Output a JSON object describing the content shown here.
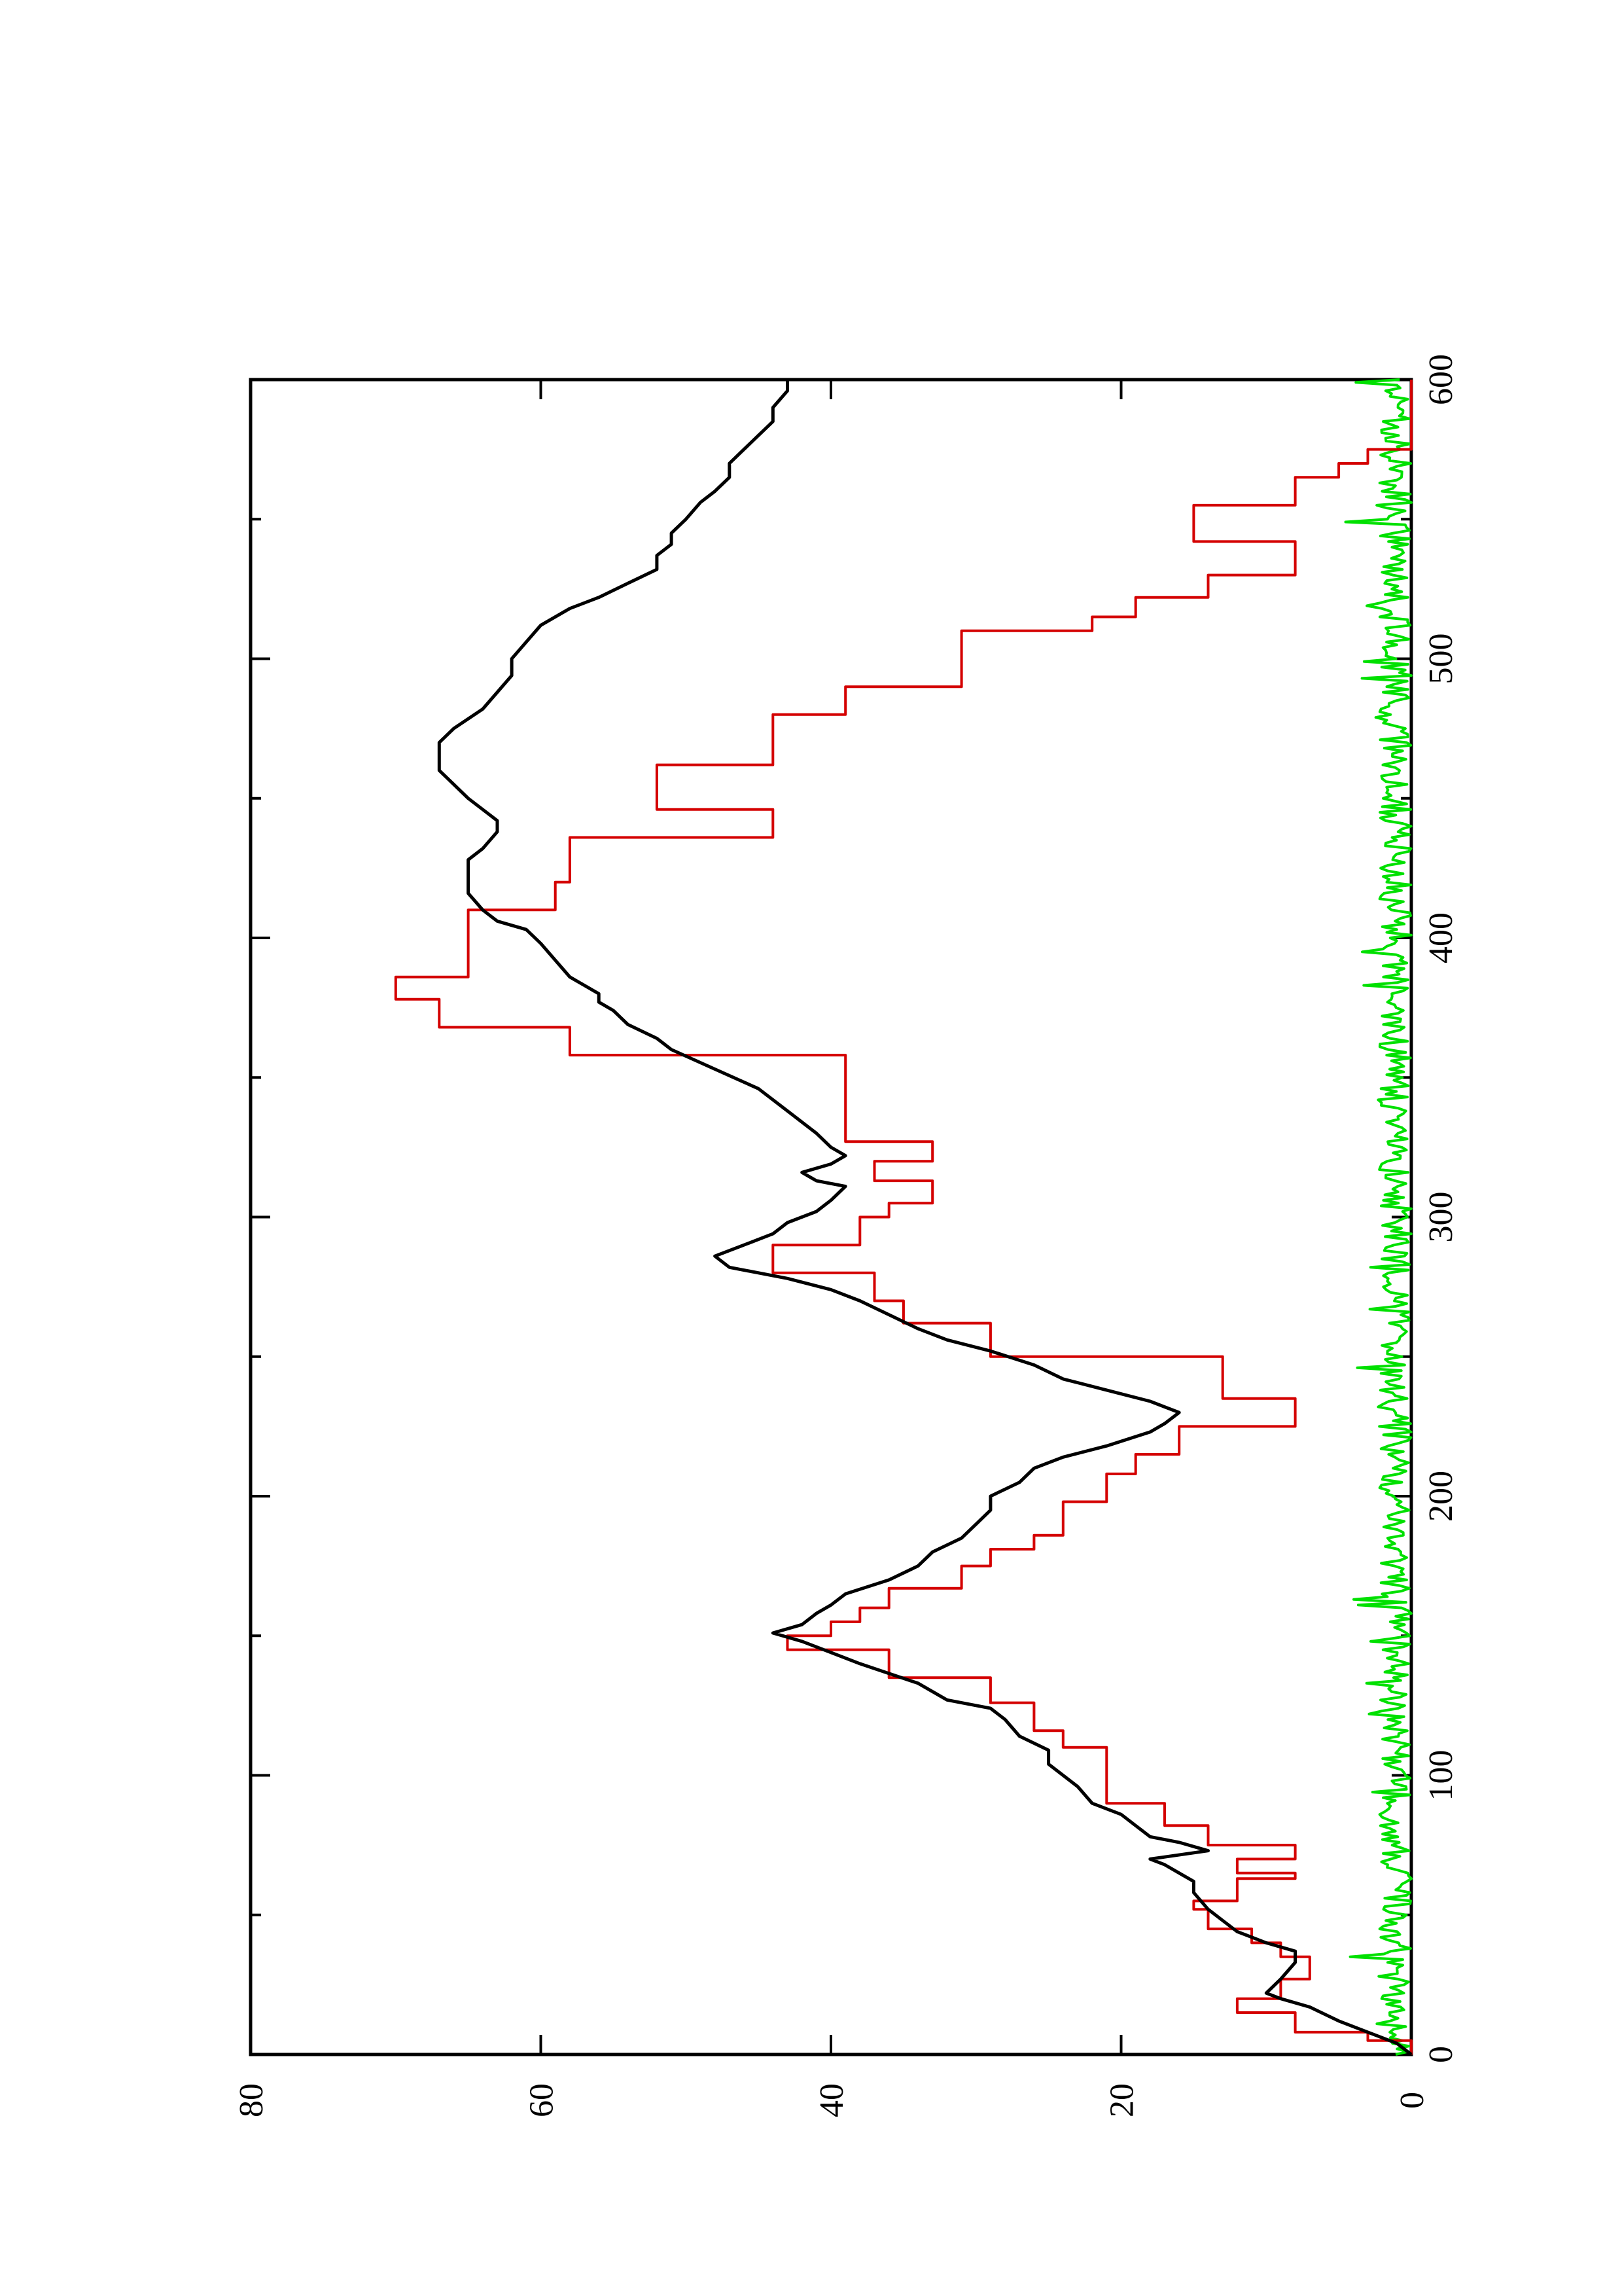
{
  "chart_data": {
    "type": "line",
    "orientation": "rotated 90° counter-clockwise (x axis runs vertically, y axis horizontally)",
    "title": "",
    "xlabel": "",
    "ylabel": "",
    "xlim": [
      0,
      600
    ],
    "ylim": [
      0,
      80
    ],
    "x_ticks": [
      0,
      100,
      200,
      300,
      400,
      500,
      600
    ],
    "x_minor_ticks": [
      50,
      150,
      250,
      350,
      450,
      550
    ],
    "y_ticks": [
      0,
      20,
      40,
      60,
      80
    ],
    "grid": false,
    "legend": "none",
    "series": [
      {
        "color": "#d40000",
        "style": "step",
        "points": [
          [
            0,
            0
          ],
          [
            5,
            0
          ],
          [
            5,
            3
          ],
          [
            8,
            3
          ],
          [
            8,
            8
          ],
          [
            15,
            8
          ],
          [
            15,
            12
          ],
          [
            20,
            12
          ],
          [
            20,
            9
          ],
          [
            27,
            9
          ],
          [
            27,
            7
          ],
          [
            35,
            7
          ],
          [
            35,
            9
          ],
          [
            40,
            9
          ],
          [
            40,
            11
          ],
          [
            45,
            11
          ],
          [
            45,
            14
          ],
          [
            52,
            14
          ],
          [
            52,
            15
          ],
          [
            55,
            15
          ],
          [
            55,
            12
          ],
          [
            63,
            12
          ],
          [
            63,
            8
          ],
          [
            65,
            8
          ],
          [
            65,
            12
          ],
          [
            70,
            12
          ],
          [
            70,
            8
          ],
          [
            75,
            8
          ],
          [
            75,
            14
          ],
          [
            82,
            14
          ],
          [
            82,
            17
          ],
          [
            90,
            17
          ],
          [
            90,
            21
          ],
          [
            110,
            21
          ],
          [
            110,
            24
          ],
          [
            116,
            24
          ],
          [
            116,
            26
          ],
          [
            126,
            26
          ],
          [
            126,
            29
          ],
          [
            135,
            29
          ],
          [
            135,
            36
          ],
          [
            145,
            36
          ],
          [
            145,
            43
          ],
          [
            150,
            43
          ],
          [
            150,
            40
          ],
          [
            155,
            40
          ],
          [
            155,
            38
          ],
          [
            160,
            38
          ],
          [
            160,
            36
          ],
          [
            167,
            36
          ],
          [
            167,
            31
          ],
          [
            175,
            31
          ],
          [
            175,
            29
          ],
          [
            181,
            29
          ],
          [
            181,
            26
          ],
          [
            186,
            26
          ],
          [
            186,
            24
          ],
          [
            198,
            24
          ],
          [
            198,
            21
          ],
          [
            208,
            21
          ],
          [
            208,
            19
          ],
          [
            215,
            19
          ],
          [
            215,
            16
          ],
          [
            225,
            16
          ],
          [
            225,
            8
          ],
          [
            235,
            8
          ],
          [
            235,
            13
          ],
          [
            250,
            13
          ],
          [
            250,
            29
          ],
          [
            262,
            29
          ],
          [
            262,
            35
          ],
          [
            270,
            35
          ],
          [
            270,
            37
          ],
          [
            280,
            37
          ],
          [
            280,
            44
          ],
          [
            290,
            44
          ],
          [
            290,
            38
          ],
          [
            300,
            38
          ],
          [
            300,
            36
          ],
          [
            305,
            36
          ],
          [
            305,
            33
          ],
          [
            313,
            33
          ],
          [
            313,
            37
          ],
          [
            320,
            37
          ],
          [
            320,
            33
          ],
          [
            327,
            33
          ],
          [
            327,
            39
          ],
          [
            358,
            39
          ],
          [
            358,
            58
          ],
          [
            368,
            58
          ],
          [
            368,
            67
          ],
          [
            378,
            67
          ],
          [
            378,
            70
          ],
          [
            386,
            70
          ],
          [
            386,
            65
          ],
          [
            410,
            65
          ],
          [
            410,
            59
          ],
          [
            420,
            59
          ],
          [
            420,
            58
          ],
          [
            436,
            58
          ],
          [
            436,
            44
          ],
          [
            446,
            44
          ],
          [
            446,
            52
          ],
          [
            462,
            52
          ],
          [
            462,
            44
          ],
          [
            480,
            44
          ],
          [
            480,
            39
          ],
          [
            490,
            39
          ],
          [
            490,
            31
          ],
          [
            510,
            31
          ],
          [
            510,
            22
          ],
          [
            515,
            22
          ],
          [
            515,
            19
          ],
          [
            522,
            19
          ],
          [
            522,
            14
          ],
          [
            530,
            14
          ],
          [
            530,
            8
          ],
          [
            542,
            8
          ],
          [
            542,
            15
          ],
          [
            555,
            15
          ],
          [
            555,
            8
          ],
          [
            565,
            8
          ],
          [
            565,
            5
          ],
          [
            570,
            5
          ],
          [
            570,
            3
          ],
          [
            575,
            3
          ],
          [
            575,
            0
          ],
          [
            600,
            0
          ]
        ]
      },
      {
        "color": "#000000",
        "style": "line",
        "points": [
          [
            0,
            0
          ],
          [
            4,
            1
          ],
          [
            8,
            3
          ],
          [
            12,
            5
          ],
          [
            17,
            7
          ],
          [
            20,
            9
          ],
          [
            22,
            10
          ],
          [
            27,
            9
          ],
          [
            33,
            8
          ],
          [
            37,
            8
          ],
          [
            40,
            10
          ],
          [
            44,
            12
          ],
          [
            48,
            13
          ],
          [
            52,
            14
          ],
          [
            58,
            15
          ],
          [
            62,
            15
          ],
          [
            65,
            16
          ],
          [
            68,
            17
          ],
          [
            70,
            18
          ],
          [
            73,
            14
          ],
          [
            76,
            16
          ],
          [
            78,
            18
          ],
          [
            82,
            19
          ],
          [
            86,
            20
          ],
          [
            90,
            22
          ],
          [
            96,
            23
          ],
          [
            104,
            25
          ],
          [
            109,
            25
          ],
          [
            114,
            27
          ],
          [
            120,
            28
          ],
          [
            124,
            29
          ],
          [
            127,
            32
          ],
          [
            133,
            34
          ],
          [
            140,
            38
          ],
          [
            144,
            40
          ],
          [
            148,
            42
          ],
          [
            151,
            44
          ],
          [
            154,
            42
          ],
          [
            158,
            41
          ],
          [
            161,
            40
          ],
          [
            165,
            39
          ],
          [
            170,
            36
          ],
          [
            175,
            34
          ],
          [
            180,
            33
          ],
          [
            185,
            31
          ],
          [
            190,
            30
          ],
          [
            195,
            29
          ],
          [
            200,
            29
          ],
          [
            205,
            27
          ],
          [
            210,
            26
          ],
          [
            214,
            24
          ],
          [
            218,
            21
          ],
          [
            223,
            18
          ],
          [
            226,
            17
          ],
          [
            230,
            16
          ],
          [
            234,
            18
          ],
          [
            238,
            21
          ],
          [
            242,
            24
          ],
          [
            247,
            26
          ],
          [
            252,
            29
          ],
          [
            256,
            32
          ],
          [
            260,
            34
          ],
          [
            265,
            36
          ],
          [
            270,
            38
          ],
          [
            274,
            40
          ],
          [
            278,
            43
          ],
          [
            282,
            47
          ],
          [
            286,
            48
          ],
          [
            290,
            46
          ],
          [
            294,
            44
          ],
          [
            298,
            43
          ],
          [
            302,
            41
          ],
          [
            306,
            40
          ],
          [
            311,
            39
          ],
          [
            313,
            41
          ],
          [
            316,
            42
          ],
          [
            319,
            40
          ],
          [
            322,
            39
          ],
          [
            325,
            40
          ],
          [
            330,
            41
          ],
          [
            338,
            43
          ],
          [
            346,
            45
          ],
          [
            353,
            48
          ],
          [
            360,
            51
          ],
          [
            364,
            52
          ],
          [
            369,
            54
          ],
          [
            374,
            55
          ],
          [
            377,
            56
          ],
          [
            380,
            56
          ],
          [
            386,
            58
          ],
          [
            392,
            59
          ],
          [
            398,
            60
          ],
          [
            403,
            61
          ],
          [
            406,
            63
          ],
          [
            410,
            64
          ],
          [
            416,
            65
          ],
          [
            422,
            65
          ],
          [
            428,
            65
          ],
          [
            432,
            64
          ],
          [
            438,
            63
          ],
          [
            442,
            63
          ],
          [
            446,
            64
          ],
          [
            450,
            65
          ],
          [
            455,
            66
          ],
          [
            460,
            67
          ],
          [
            465,
            67
          ],
          [
            470,
            67
          ],
          [
            475,
            66
          ],
          [
            482,
            64
          ],
          [
            488,
            63
          ],
          [
            494,
            62
          ],
          [
            500,
            62
          ],
          [
            506,
            61
          ],
          [
            512,
            60
          ],
          [
            518,
            58
          ],
          [
            522,
            56
          ],
          [
            527,
            54
          ],
          [
            532,
            52
          ],
          [
            537,
            52
          ],
          [
            541,
            51
          ],
          [
            545,
            51
          ],
          [
            550,
            50
          ],
          [
            556,
            49
          ],
          [
            560,
            48
          ],
          [
            565,
            47
          ],
          [
            570,
            47
          ],
          [
            575,
            46
          ],
          [
            580,
            45
          ],
          [
            585,
            44
          ],
          [
            590,
            44
          ],
          [
            596,
            43
          ],
          [
            600,
            43
          ]
        ]
      },
      {
        "color": "#00e000",
        "style": "line",
        "points": []
      }
    ]
  }
}
